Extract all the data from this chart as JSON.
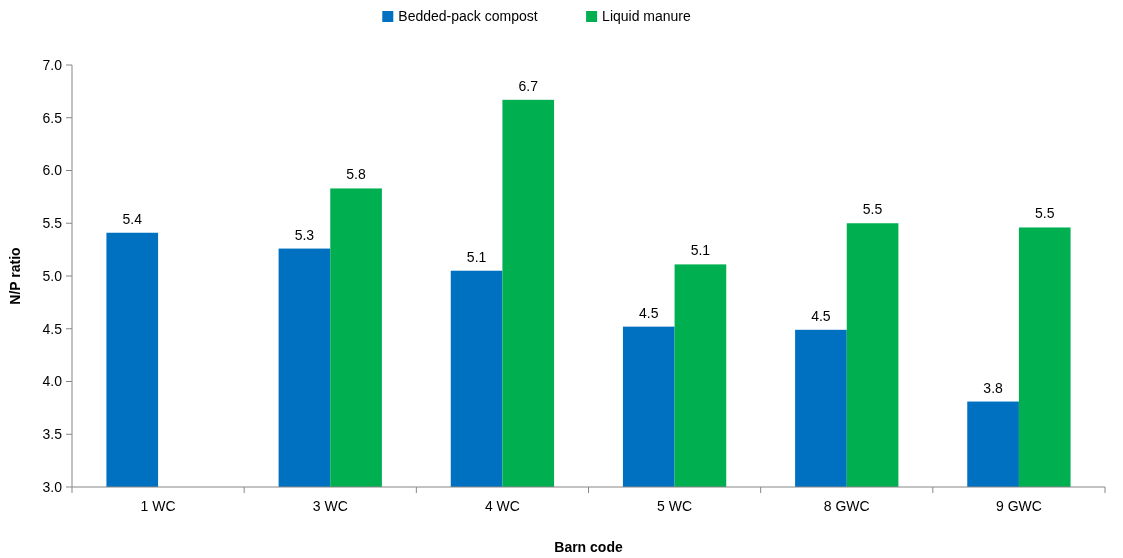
{
  "chart_data": {
    "type": "bar",
    "xlabel": "Barn code",
    "ylabel": "N/P ratio",
    "categories": [
      "1 WC",
      "3 WC",
      "4 WC",
      "5 WC",
      "8 GWC",
      "9 GWC"
    ],
    "series": [
      {
        "name": "Bedded-pack compost",
        "color": "#0070c0",
        "values": [
          5.41,
          5.26,
          5.05,
          4.52,
          4.49,
          3.81
        ],
        "value_labels": [
          "5.4",
          "5.3",
          "5.1",
          "4.5",
          "4.5",
          "3.8"
        ]
      },
      {
        "name": "Liquid manure",
        "color": "#00b050",
        "values": [
          null,
          5.83,
          6.67,
          5.11,
          5.5,
          5.46
        ],
        "value_labels": [
          null,
          "5.8",
          "6.7",
          "5.1",
          "5.5",
          "5.5"
        ]
      }
    ],
    "ylim": [
      3,
      7
    ],
    "yticks": [
      {
        "value": 3,
        "label": "3.0"
      },
      {
        "value": 3.5,
        "label": "3.5"
      },
      {
        "value": 4,
        "label": "4.0"
      },
      {
        "value": 4.5,
        "label": "4.5"
      },
      {
        "value": 5,
        "label": "5.0"
      },
      {
        "value": 5.5,
        "label": "5.5"
      },
      {
        "value": 6,
        "label": "6.0"
      },
      {
        "value": 6.5,
        "label": "6.5"
      },
      {
        "value": 7,
        "label": "7.0"
      }
    ],
    "legend": "top"
  }
}
